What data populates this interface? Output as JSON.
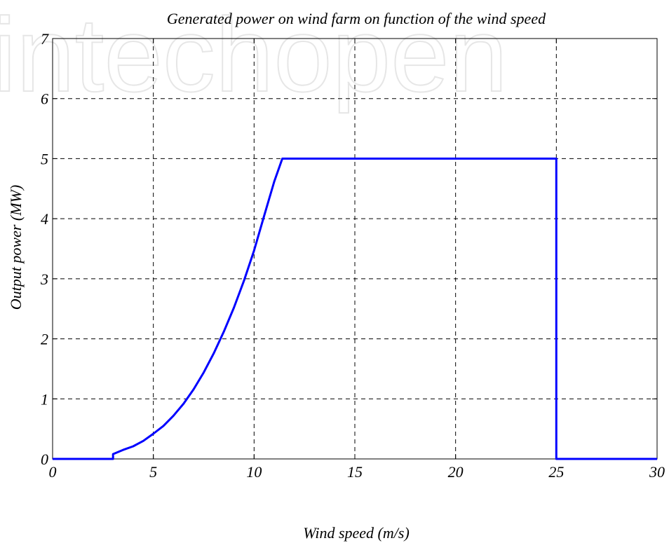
{
  "chart_data": {
    "type": "line",
    "title": "Generated power on wind farm on function of the wind speed",
    "xlabel": "Wind speed (m/s)",
    "ylabel": "Output power (MW)",
    "xlim": [
      0,
      30
    ],
    "ylim": [
      0,
      7
    ],
    "xticks": [
      0,
      5,
      10,
      15,
      20,
      25,
      30
    ],
    "yticks": [
      0,
      1,
      2,
      3,
      4,
      5,
      6,
      7
    ],
    "grid": true,
    "grid_style": "dashed",
    "series": [
      {
        "color": "#0000ff",
        "x": [
          0,
          3,
          3,
          3.5,
          4,
          4.5,
          5,
          5.5,
          6,
          6.5,
          7,
          7.5,
          8,
          8.5,
          9,
          9.5,
          10,
          10.5,
          11,
          11.4,
          12,
          15,
          20,
          25,
          25,
          30
        ],
        "y": [
          0,
          0,
          0.08,
          0.15,
          0.21,
          0.3,
          0.42,
          0.55,
          0.72,
          0.92,
          1.16,
          1.44,
          1.76,
          2.12,
          2.52,
          2.97,
          3.47,
          4.05,
          4.62,
          5,
          5,
          5,
          5,
          5,
          0,
          0
        ]
      }
    ]
  },
  "watermark": "intechopen"
}
